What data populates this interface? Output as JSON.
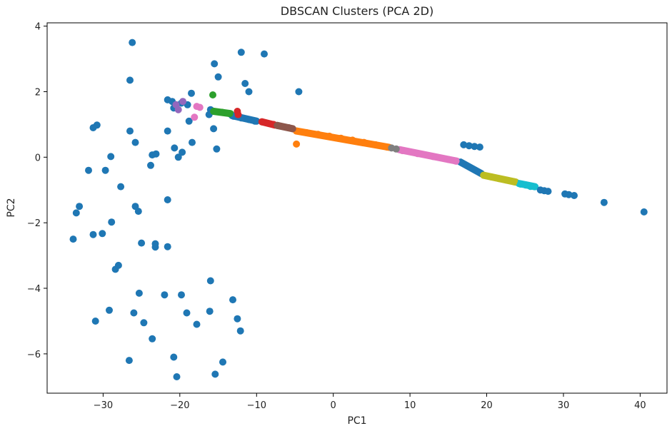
{
  "chart_data": {
    "type": "scatter",
    "title": "DBSCAN Clusters (PCA 2D)",
    "xlabel": "PC1",
    "ylabel": "PC2",
    "xlim": [
      -37.3,
      43.5
    ],
    "ylim": [
      -7.2,
      4.1
    ],
    "x_ticks": [
      -30,
      -20,
      -10,
      0,
      10,
      20,
      30,
      40
    ],
    "x_tick_labels": [
      "−30",
      "−20",
      "−10",
      "0",
      "10",
      "20",
      "30",
      "40"
    ],
    "y_ticks": [
      4,
      2,
      0,
      -2,
      -4,
      -6
    ],
    "y_tick_labels": [
      "4",
      "2",
      "0",
      "−2",
      "−4",
      "−6"
    ],
    "grid": false,
    "legend": "none",
    "series": [
      {
        "color": "#1f77b4",
        "points": [
          [
            -26.2,
            3.5
          ],
          [
            -12.0,
            3.2
          ],
          [
            -9.0,
            3.15
          ],
          [
            -15.5,
            2.85
          ],
          [
            -26.5,
            2.35
          ],
          [
            -15.0,
            2.45
          ],
          [
            -11.5,
            2.25
          ],
          [
            -11.0,
            2.0
          ],
          [
            -4.5,
            2.0
          ],
          [
            -18.5,
            1.95
          ],
          [
            -21.6,
            1.75
          ],
          [
            -21.0,
            1.7
          ],
          [
            -20.5,
            1.6
          ],
          [
            -19.8,
            1.65
          ],
          [
            -19.0,
            1.6
          ],
          [
            -20.8,
            1.5
          ],
          [
            -16.0,
            1.45
          ],
          [
            -16.2,
            1.3
          ],
          [
            -18.8,
            1.1
          ],
          [
            -31.3,
            0.9
          ],
          [
            -30.8,
            0.98
          ],
          [
            -26.5,
            0.8
          ],
          [
            -21.6,
            0.8
          ],
          [
            -15.6,
            0.87
          ],
          [
            -25.8,
            0.45
          ],
          [
            -18.4,
            0.45
          ],
          [
            -20.7,
            0.28
          ],
          [
            -15.2,
            0.25
          ],
          [
            -19.7,
            0.15
          ],
          [
            -23.6,
            0.07
          ],
          [
            -23.1,
            0.1
          ],
          [
            -29.0,
            0.02
          ],
          [
            -20.2,
            0.0
          ],
          [
            -23.8,
            -0.25
          ],
          [
            -31.9,
            -0.4
          ],
          [
            -29.7,
            -0.4
          ],
          [
            -27.7,
            -0.9
          ],
          [
            -21.6,
            -1.3
          ],
          [
            -25.8,
            -1.5
          ],
          [
            -33.1,
            -1.5
          ],
          [
            -25.4,
            -1.65
          ],
          [
            -33.5,
            -1.7
          ],
          [
            -28.9,
            -1.98
          ],
          [
            -31.3,
            -2.36
          ],
          [
            -30.1,
            -2.33
          ],
          [
            -33.9,
            -2.5
          ],
          [
            -25.0,
            -2.62
          ],
          [
            -23.2,
            -2.64
          ],
          [
            -23.2,
            -2.74
          ],
          [
            -21.6,
            -2.73
          ],
          [
            -28.0,
            -3.3
          ],
          [
            -28.4,
            -3.42
          ],
          [
            -16.0,
            -3.77
          ],
          [
            -25.3,
            -4.15
          ],
          [
            -22.0,
            -4.2
          ],
          [
            -19.8,
            -4.2
          ],
          [
            -13.1,
            -4.35
          ],
          [
            -29.2,
            -4.67
          ],
          [
            -26.0,
            -4.75
          ],
          [
            -19.1,
            -4.75
          ],
          [
            -16.1,
            -4.7
          ],
          [
            -12.5,
            -4.93
          ],
          [
            -31.0,
            -5.0
          ],
          [
            -24.7,
            -5.05
          ],
          [
            -17.8,
            -5.1
          ],
          [
            -12.1,
            -5.3
          ],
          [
            -23.6,
            -5.54
          ],
          [
            -26.6,
            -6.2
          ],
          [
            -20.8,
            -6.1
          ],
          [
            -14.4,
            -6.25
          ],
          [
            -15.4,
            -6.62
          ],
          [
            -20.4,
            -6.7
          ],
          [
            -13.0,
            1.25
          ],
          [
            -12.0,
            1.2
          ],
          [
            -11.0,
            1.15
          ],
          [
            -10.2,
            1.1
          ],
          [
            17.0,
            0.38
          ],
          [
            17.7,
            0.35
          ],
          [
            18.4,
            0.33
          ],
          [
            19.1,
            0.31
          ],
          [
            27.0,
            -1.0
          ],
          [
            27.5,
            -1.02
          ],
          [
            28.0,
            -1.04
          ],
          [
            30.2,
            -1.12
          ],
          [
            30.7,
            -1.14
          ],
          [
            31.4,
            -1.17
          ],
          [
            35.3,
            -1.38
          ],
          [
            40.5,
            -1.67
          ]
        ]
      },
      {
        "color": "#ff7f0e",
        "points": [
          [
            -4.8,
            0.8
          ],
          [
            -3.5,
            0.75
          ],
          [
            -2.0,
            0.7
          ],
          [
            -0.5,
            0.64
          ],
          [
            1.0,
            0.58
          ],
          [
            2.5,
            0.52
          ],
          [
            4.0,
            0.45
          ],
          [
            5.5,
            0.38
          ],
          [
            7.0,
            0.31
          ],
          [
            -4.8,
            0.4
          ]
        ]
      },
      {
        "color": "#2ca02c",
        "points": [
          [
            -15.7,
            1.9
          ],
          [
            -15.6,
            1.4
          ],
          [
            -14.5,
            1.37
          ],
          [
            -13.5,
            1.33
          ]
        ]
      },
      {
        "color": "#d62728",
        "points": [
          [
            -12.5,
            1.4
          ],
          [
            -12.4,
            1.3
          ],
          [
            -9.3,
            1.08
          ],
          [
            -7.8,
            1.0
          ]
        ]
      },
      {
        "color": "#9467bd",
        "points": [
          [
            -20.5,
            1.6
          ],
          [
            -19.6,
            1.7
          ],
          [
            -20.2,
            1.45
          ]
        ]
      },
      {
        "color": "#8c564b",
        "points": [
          [
            -7.3,
            0.97
          ],
          [
            -5.8,
            0.9
          ],
          [
            -5.3,
            0.87
          ]
        ]
      },
      {
        "color": "#e377c2",
        "points": [
          [
            -17.8,
            1.55
          ],
          [
            -17.4,
            1.52
          ],
          [
            -18.1,
            1.22
          ],
          [
            9.0,
            0.2
          ],
          [
            11.0,
            0.11
          ],
          [
            13.0,
            0.02
          ],
          [
            15.0,
            -0.07
          ],
          [
            16.0,
            -0.12
          ]
        ]
      },
      {
        "color": "#7f7f7f",
        "points": [
          [
            7.6,
            0.28
          ],
          [
            8.2,
            0.25
          ]
        ]
      },
      {
        "color": "#bcbd22",
        "points": [
          [
            19.6,
            -0.55
          ],
          [
            20.6,
            -0.6
          ],
          [
            21.6,
            -0.65
          ],
          [
            22.6,
            -0.7
          ],
          [
            23.6,
            -0.75
          ]
        ]
      },
      {
        "color": "#17becf",
        "points": [
          [
            24.4,
            -0.82
          ],
          [
            25.1,
            -0.85
          ],
          [
            25.7,
            -0.89
          ],
          [
            26.2,
            -0.9
          ]
        ]
      }
    ],
    "segments": [
      {
        "color": "#ff7f0e",
        "from": [
          -4.8,
          0.8
        ],
        "to": [
          7.3,
          0.3
        ]
      },
      {
        "color": "#e377c2",
        "from": [
          8.6,
          0.23
        ],
        "to": [
          16.1,
          -0.12
        ]
      },
      {
        "color": "#1f77b4",
        "from": [
          16.6,
          -0.15
        ],
        "to": [
          19.3,
          -0.5
        ]
      },
      {
        "color": "#bcbd22",
        "from": [
          19.6,
          -0.55
        ],
        "to": [
          23.8,
          -0.76
        ]
      },
      {
        "color": "#17becf",
        "from": [
          24.2,
          -0.8
        ],
        "to": [
          26.3,
          -0.9
        ]
      },
      {
        "color": "#1f77b4",
        "from": [
          -13.2,
          1.27
        ],
        "to": [
          -10.0,
          1.1
        ]
      },
      {
        "color": "#2ca02c",
        "from": [
          -15.6,
          1.4
        ],
        "to": [
          -13.4,
          1.33
        ]
      },
      {
        "color": "#d62728",
        "from": [
          -9.3,
          1.08
        ],
        "to": [
          -7.6,
          0.98
        ]
      },
      {
        "color": "#8c564b",
        "from": [
          -7.3,
          0.97
        ],
        "to": [
          -5.3,
          0.87
        ]
      }
    ]
  }
}
